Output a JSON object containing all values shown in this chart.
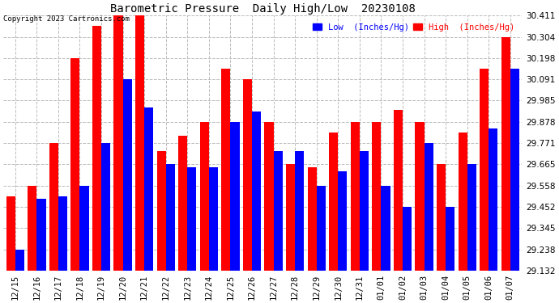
{
  "title": "Barometric Pressure  Daily High/Low  20230108",
  "copyright": "Copyright 2023 Cartronics.com",
  "legend_low": "Low  (Inches/Hg)",
  "legend_high": "High  (Inches/Hg)",
  "dates": [
    "12/15",
    "12/16",
    "12/17",
    "12/18",
    "12/19",
    "12/20",
    "12/21",
    "12/22",
    "12/23",
    "12/24",
    "12/25",
    "12/26",
    "12/27",
    "12/28",
    "12/29",
    "12/30",
    "12/31",
    "01/01",
    "01/02",
    "01/03",
    "01/04",
    "01/05",
    "01/06",
    "01/07"
  ],
  "low": [
    29.238,
    29.49,
    29.505,
    29.558,
    29.771,
    30.091,
    29.95,
    29.665,
    29.65,
    29.65,
    29.878,
    29.93,
    29.73,
    29.73,
    29.558,
    29.63,
    29.73,
    29.558,
    29.452,
    29.771,
    29.452,
    29.665,
    29.845,
    30.145
  ],
  "high": [
    29.505,
    29.558,
    29.771,
    30.198,
    30.358,
    30.411,
    30.411,
    29.73,
    29.81,
    29.878,
    30.145,
    30.091,
    29.878,
    29.665,
    29.65,
    29.825,
    29.878,
    29.878,
    29.938,
    29.878,
    29.665,
    29.825,
    30.145,
    30.304
  ],
  "ymin": 29.132,
  "ymax": 30.411,
  "yticks": [
    29.132,
    29.238,
    29.345,
    29.452,
    29.558,
    29.665,
    29.771,
    29.878,
    29.985,
    30.091,
    30.198,
    30.304,
    30.411
  ],
  "background_color": "#ffffff",
  "low_color": "#0000ff",
  "high_color": "#ff0000",
  "title_color": "#000000",
  "copyright_color": "#000000",
  "legend_low_color": "#0000ff",
  "legend_high_color": "#ff0000",
  "grid_color": "#bbbbbb",
  "bar_width": 0.42,
  "figwidth": 6.9,
  "figheight": 3.75,
  "dpi": 100
}
